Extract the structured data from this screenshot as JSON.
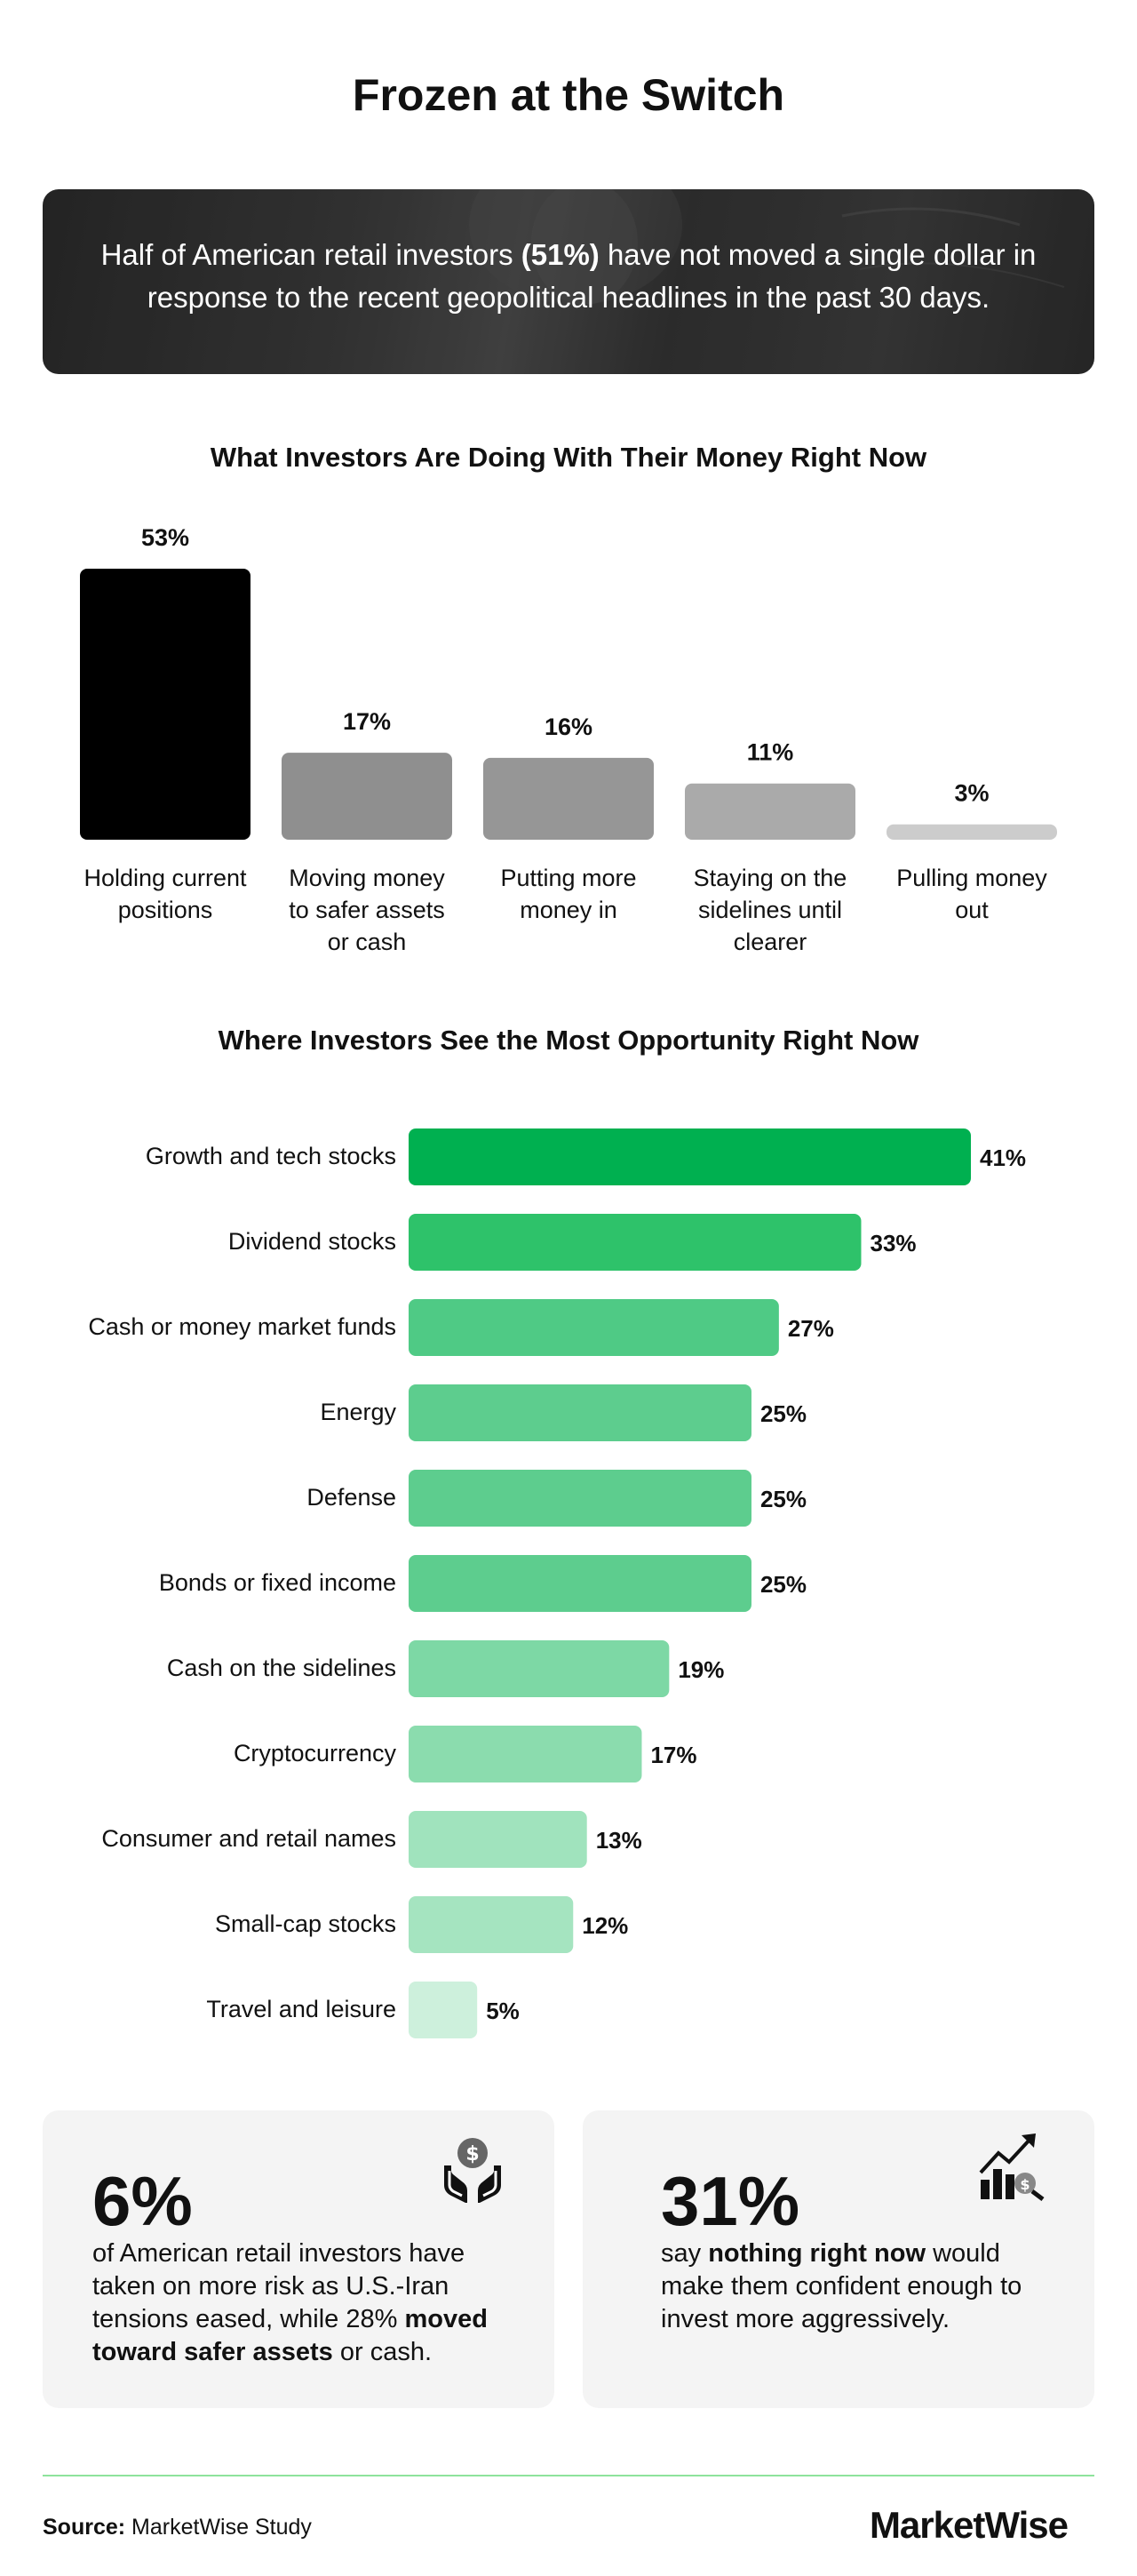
{
  "title": "Frozen at the Switch",
  "banner": {
    "before": "Half of American retail investors ",
    "highlight": "(51%)",
    "after": " have not moved a single dollar in response to the recent geopolitical headlines in the past 30 days."
  },
  "chart_data": [
    {
      "type": "bar",
      "orientation": "vertical",
      "title": "What Investors Are Doing With Their Money Right Now",
      "categories": [
        "Holding current positions",
        "Moving money to safer assets or cash",
        "Putting more money in",
        "Staying on the sidelines until clearer",
        "Pulling money out"
      ],
      "category_lines": [
        [
          "Holding current",
          "positions"
        ],
        [
          "Moving money",
          "to safer assets",
          "or cash"
        ],
        [
          "Putting more",
          "money in"
        ],
        [
          "Staying on the",
          "sidelines until",
          "clearer"
        ],
        [
          "Pulling money",
          "out"
        ]
      ],
      "values": [
        53,
        17,
        16,
        11,
        3
      ],
      "value_labels": [
        "53%",
        "17%",
        "16%",
        "11%",
        "3%"
      ],
      "colors": [
        "#000000",
        "#8f8f8f",
        "#969696",
        "#aaaaaa",
        "#cccccc"
      ],
      "ylim": [
        0,
        53
      ],
      "grid": false
    },
    {
      "type": "bar",
      "orientation": "horizontal",
      "title": "Where Investors See the Most Opportunity Right Now",
      "categories": [
        "Growth and tech stocks",
        "Dividend stocks",
        "Cash or money market funds",
        "Energy",
        "Defense",
        "Bonds or fixed income",
        "Cash on the sidelines",
        "Cryptocurrency",
        "Consumer and retail names",
        "Small-cap stocks",
        "Travel and leisure"
      ],
      "values": [
        41,
        33,
        27,
        25,
        25,
        25,
        19,
        17,
        13,
        12,
        5
      ],
      "value_labels": [
        "41%",
        "33%",
        "27%",
        "25%",
        "25%",
        "25%",
        "19%",
        "17%",
        "13%",
        "12%",
        "5%"
      ],
      "colors": [
        "#00b050",
        "#2ec26a",
        "#4fca85",
        "#5dcd8e",
        "#5dcd8e",
        "#5dcd8e",
        "#7dd8a5",
        "#8bdcae",
        "#a0e3bd",
        "#a5e4c0",
        "#cdf0dc"
      ],
      "xlim": [
        0,
        41
      ],
      "grid": false
    }
  ],
  "cards": [
    {
      "big": "6%",
      "desc_before": "of American retail investors have taken on more risk as U.S.-Iran tensions eased, while 28% ",
      "desc_bold": "moved toward safer assets",
      "desc_after": " or cash.",
      "icon": "money-hands-icon"
    },
    {
      "big": "31%",
      "desc_before": "say ",
      "desc_bold": "nothing right now",
      "desc_after": " would make them confident enough to invest more aggressively.",
      "icon": "growth-chart-icon"
    }
  ],
  "footer": {
    "source_label": "Source:",
    "source_text": " MarketWise Study",
    "brand": "MarketWise"
  },
  "colors": {
    "accent": "#00b050",
    "divider": "#8ee39c",
    "card_bg": "#f4f4f4"
  }
}
